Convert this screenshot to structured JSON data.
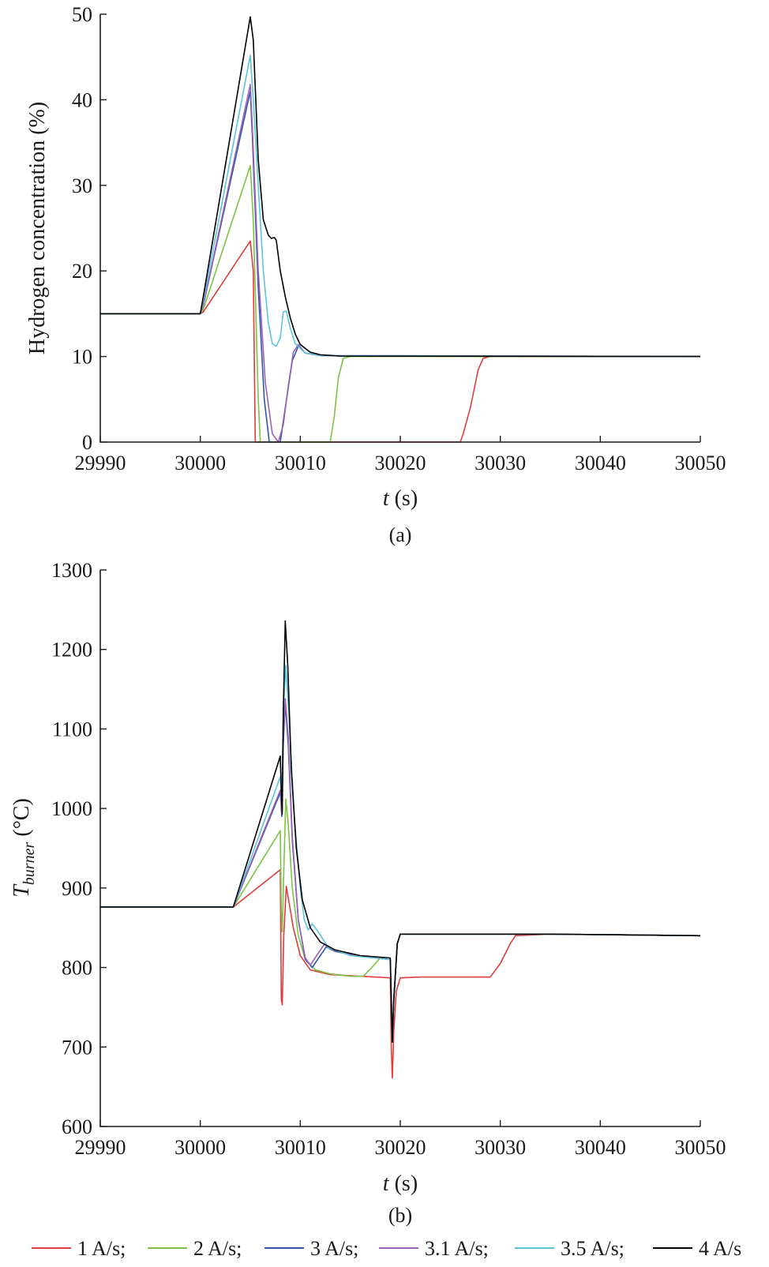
{
  "chart_data": [
    {
      "type": "line",
      "panel_label": "(a)",
      "title": "",
      "ylabel": "Hydrogen concentration (%)",
      "xlabel_var": "t",
      "xlabel_unit": " (s)",
      "xlim": [
        29990,
        30050
      ],
      "ylim": [
        0,
        50
      ],
      "xticks": [
        29990,
        30000,
        30010,
        30020,
        30030,
        30040,
        30050
      ],
      "yticks": [
        0,
        10,
        20,
        30,
        40,
        50
      ],
      "grid": false,
      "series": [
        {
          "name": "1 A/s",
          "color": "#e03c3c",
          "points": [
            [
              29990,
              15
            ],
            [
              30000,
              15
            ],
            [
              30000.3,
              15.2
            ],
            [
              30005,
              23.5
            ],
            [
              30005.3,
              20
            ],
            [
              30005.5,
              0
            ],
            [
              30026,
              0
            ],
            [
              30026.3,
              1
            ],
            [
              30027,
              4
            ],
            [
              30027.8,
              8.5
            ],
            [
              30028.3,
              9.8
            ],
            [
              30029,
              10
            ],
            [
              30050,
              10
            ]
          ]
        },
        {
          "name": "2 A/s",
          "color": "#7dc244",
          "points": [
            [
              29990,
              15
            ],
            [
              30000,
              15
            ],
            [
              30000.3,
              15.5
            ],
            [
              30005,
              32.3
            ],
            [
              30005.3,
              26
            ],
            [
              30005.8,
              5
            ],
            [
              30006,
              0
            ],
            [
              30013,
              0
            ],
            [
              30013.4,
              3
            ],
            [
              30013.8,
              7.5
            ],
            [
              30014.3,
              9.8
            ],
            [
              30015,
              10
            ],
            [
              30050,
              10
            ]
          ]
        },
        {
          "name": "3 A/s",
          "color": "#2f57a8",
          "points": [
            [
              29990,
              15
            ],
            [
              30000,
              15
            ],
            [
              30000.3,
              16
            ],
            [
              30005,
              41
            ],
            [
              30005.2,
              36
            ],
            [
              30005.8,
              18
            ],
            [
              30006.4,
              5
            ],
            [
              30006.9,
              0
            ],
            [
              30008,
              0
            ],
            [
              30008.5,
              4
            ],
            [
              30009.2,
              9.5
            ],
            [
              30009.8,
              11.2
            ],
            [
              30010.5,
              10.4
            ],
            [
              30012,
              10.1
            ],
            [
              30050,
              10
            ]
          ]
        },
        {
          "name": "3.1 A/s",
          "color": "#9b5fb5",
          "points": [
            [
              29990,
              15
            ],
            [
              30000,
              15
            ],
            [
              30000.3,
              16
            ],
            [
              30005,
              41.8
            ],
            [
              30005.2,
              37
            ],
            [
              30005.8,
              20
            ],
            [
              30006.5,
              7
            ],
            [
              30007.2,
              1
            ],
            [
              30007.8,
              0
            ],
            [
              30008.3,
              2
            ],
            [
              30008.8,
              6.5
            ],
            [
              30009.3,
              10.5
            ],
            [
              30009.8,
              11.4
            ],
            [
              30010.5,
              10.4
            ],
            [
              30012,
              10.1
            ],
            [
              30050,
              10
            ]
          ]
        },
        {
          "name": "3.5 A/s",
          "color": "#5bc4db",
          "points": [
            [
              29990,
              15
            ],
            [
              30000,
              15
            ],
            [
              30000.3,
              16.5
            ],
            [
              30005,
              45.2
            ],
            [
              30005.3,
              40
            ],
            [
              30005.8,
              30
            ],
            [
              30006.3,
              20
            ],
            [
              30006.8,
              14
            ],
            [
              30007.2,
              11.5
            ],
            [
              30007.6,
              11.2
            ],
            [
              30008,
              12.2
            ],
            [
              30008.3,
              15.2
            ],
            [
              30008.6,
              15.3
            ],
            [
              30009,
              13.3
            ],
            [
              30009.5,
              11.5
            ],
            [
              30010.5,
              10.4
            ],
            [
              30012,
              10.1
            ],
            [
              30050,
              10
            ]
          ]
        },
        {
          "name": "4 A/s",
          "color": "#000000",
          "points": [
            [
              29990,
              15
            ],
            [
              30000,
              15
            ],
            [
              30000.3,
              17
            ],
            [
              30005,
              49.7
            ],
            [
              30005.3,
              47
            ],
            [
              30005.8,
              33
            ],
            [
              30006.3,
              26
            ],
            [
              30006.8,
              24.2
            ],
            [
              30007.1,
              23.8
            ],
            [
              30007.4,
              23.9
            ],
            [
              30007.6,
              23.6
            ],
            [
              30008,
              20
            ],
            [
              30008.5,
              17
            ],
            [
              30009,
              14.5
            ],
            [
              30009.5,
              12.6
            ],
            [
              30010,
              11.4
            ],
            [
              30011,
              10.5
            ],
            [
              30012,
              10.2
            ],
            [
              30014,
              10.05
            ],
            [
              30050,
              10
            ]
          ]
        }
      ]
    },
    {
      "type": "line",
      "panel_label": "(b)",
      "title": "",
      "ylabel_main": "T",
      "ylabel_sub": "burner",
      "ylabel_unit": " (°C)",
      "xlabel_var": "t",
      "xlabel_unit": " (s)",
      "xlim": [
        29990,
        30050
      ],
      "ylim": [
        600,
        1300
      ],
      "xticks": [
        29990,
        30000,
        30010,
        30020,
        30030,
        30040,
        30050
      ],
      "yticks": [
        600,
        700,
        800,
        900,
        1000,
        1100,
        1200,
        1300
      ],
      "grid": false,
      "series": [
        {
          "name": "1 A/s",
          "color": "#e03c3c",
          "points": [
            [
              29990,
              876
            ],
            [
              30003.3,
              876
            ],
            [
              30008,
              923
            ],
            [
              30008.1,
              760
            ],
            [
              30008.2,
              753
            ],
            [
              30008.35,
              840
            ],
            [
              30008.6,
              902
            ],
            [
              30008.9,
              880
            ],
            [
              30009.3,
              850
            ],
            [
              30010,
              815
            ],
            [
              30011,
              797
            ],
            [
              30013,
              791
            ],
            [
              30016,
              789
            ],
            [
              30019,
              787
            ],
            [
              30019.1,
              700
            ],
            [
              30019.2,
              661
            ],
            [
              30019.35,
              720
            ],
            [
              30019.6,
              770
            ],
            [
              30020,
              787
            ],
            [
              30022,
              788
            ],
            [
              30029,
              788
            ],
            [
              30030,
              805
            ],
            [
              30031,
              830
            ],
            [
              30031.5,
              840
            ],
            [
              30035,
              842
            ],
            [
              30050,
              840
            ]
          ]
        },
        {
          "name": "2 A/s",
          "color": "#7dc244",
          "points": [
            [
              29990,
              876
            ],
            [
              30003.3,
              876
            ],
            [
              30008,
              972
            ],
            [
              30008.1,
              870
            ],
            [
              30008.2,
              845
            ],
            [
              30008.35,
              920
            ],
            [
              30008.55,
              1012
            ],
            [
              30008.8,
              980
            ],
            [
              30009.2,
              900
            ],
            [
              30009.8,
              840
            ],
            [
              30010.5,
              810
            ],
            [
              30011.5,
              797
            ],
            [
              30013,
              792
            ],
            [
              30015,
              789
            ],
            [
              30016.3,
              789
            ],
            [
              30017,
              798
            ],
            [
              30018,
              812
            ],
            [
              30019,
              810
            ],
            [
              30019.1,
              760
            ],
            [
              30019.2,
              706
            ],
            [
              30019.35,
              760
            ],
            [
              30019.7,
              830
            ],
            [
              30020,
              842
            ],
            [
              30035,
              842
            ],
            [
              30050,
              840
            ]
          ]
        },
        {
          "name": "3 A/s",
          "color": "#2f57a8",
          "points": [
            [
              29990,
              876
            ],
            [
              30003.3,
              876
            ],
            [
              30008,
              1020
            ],
            [
              30008.15,
              990
            ],
            [
              30008.3,
              1080
            ],
            [
              30008.5,
              1132
            ],
            [
              30008.8,
              1080
            ],
            [
              30009.2,
              960
            ],
            [
              30009.8,
              860
            ],
            [
              30010.5,
              810
            ],
            [
              30011.2,
              800
            ],
            [
              30012,
              815
            ],
            [
              30012.6,
              826
            ],
            [
              30013.5,
              820
            ],
            [
              30016,
              814
            ],
            [
              30019,
              810
            ],
            [
              30019.1,
              760
            ],
            [
              30019.2,
              706
            ],
            [
              30019.35,
              760
            ],
            [
              30019.7,
              830
            ],
            [
              30020,
              842
            ],
            [
              30035,
              842
            ],
            [
              30050,
              840
            ]
          ]
        },
        {
          "name": "3.1 A/s",
          "color": "#9b5fb5",
          "points": [
            [
              29990,
              876
            ],
            [
              30003.3,
              876
            ],
            [
              30008,
              1023
            ],
            [
              30008.15,
              995
            ],
            [
              30008.3,
              1090
            ],
            [
              30008.5,
              1138
            ],
            [
              30008.8,
              1090
            ],
            [
              30009.2,
              965
            ],
            [
              30009.8,
              860
            ],
            [
              30010.5,
              812
            ],
            [
              30011,
              803
            ],
            [
              30011.8,
              818
            ],
            [
              30012.4,
              829
            ],
            [
              30013.5,
              821
            ],
            [
              30016,
              814
            ],
            [
              30019,
              810
            ],
            [
              30019.1,
              760
            ],
            [
              30019.2,
              706
            ],
            [
              30019.35,
              760
            ],
            [
              30019.7,
              830
            ],
            [
              30020,
              842
            ],
            [
              30035,
              842
            ],
            [
              30050,
              840
            ]
          ]
        },
        {
          "name": "3.5 A/s",
          "color": "#5bc4db",
          "points": [
            [
              29990,
              876
            ],
            [
              30003.3,
              876
            ],
            [
              30008,
              1040
            ],
            [
              30008.15,
              1010
            ],
            [
              30008.3,
              1120
            ],
            [
              30008.55,
              1180
            ],
            [
              30008.9,
              1110
            ],
            [
              30009.4,
              990
            ],
            [
              30010,
              900
            ],
            [
              30010.4,
              860
            ],
            [
              30010.8,
              847
            ],
            [
              30011.2,
              855
            ],
            [
              30011.8,
              845
            ],
            [
              30012.8,
              825
            ],
            [
              30015,
              815
            ],
            [
              30019,
              810
            ],
            [
              30019.1,
              760
            ],
            [
              30019.2,
              706
            ],
            [
              30019.35,
              760
            ],
            [
              30019.7,
              830
            ],
            [
              30020,
              842
            ],
            [
              30035,
              842
            ],
            [
              30050,
              840
            ]
          ]
        },
        {
          "name": "4 A/s",
          "color": "#000000",
          "points": [
            [
              29990,
              876
            ],
            [
              30003.3,
              876
            ],
            [
              30008,
              1066
            ],
            [
              30008.1,
              1020
            ],
            [
              30008.2,
              993
            ],
            [
              30008.3,
              1120
            ],
            [
              30008.5,
              1236
            ],
            [
              30008.75,
              1180
            ],
            [
              30009.1,
              1050
            ],
            [
              30009.6,
              950
            ],
            [
              30010.2,
              885
            ],
            [
              30011,
              850
            ],
            [
              30012,
              832
            ],
            [
              30013.5,
              822
            ],
            [
              30016,
              815
            ],
            [
              30019,
              812
            ],
            [
              30019.1,
              760
            ],
            [
              30019.2,
              706
            ],
            [
              30019.35,
              760
            ],
            [
              30019.7,
              830
            ],
            [
              30020,
              842
            ],
            [
              30035,
              842
            ],
            [
              30050,
              840
            ]
          ]
        }
      ]
    }
  ],
  "legend": {
    "placement": "bottom",
    "entries": [
      "1 A/s;",
      "2 A/s;",
      "3 A/s;",
      "3.1 A/s;",
      "3.5 A/s;",
      "4 A/s"
    ],
    "colors": [
      "#e03c3c",
      "#7dc244",
      "#2f57a8",
      "#9b5fb5",
      "#5bc4db",
      "#000000"
    ]
  }
}
